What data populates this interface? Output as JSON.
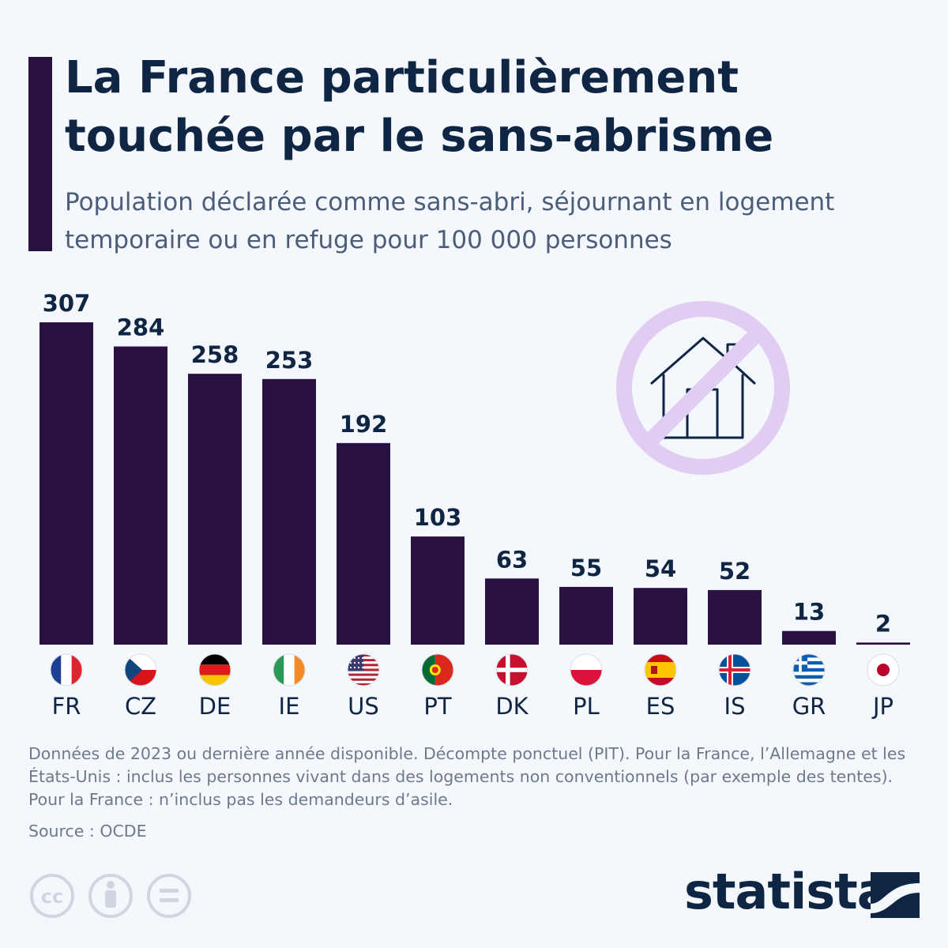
{
  "header": {
    "title": "La France particulièrement touchée par le sans-abrisme",
    "subtitle": "Population déclarée comme sans-abri, séjournant en logement temporaire ou en refuge pour 100 000 personnes"
  },
  "chart_data": {
    "type": "bar",
    "categories": [
      "FR",
      "CZ",
      "DE",
      "IE",
      "US",
      "PT",
      "DK",
      "PL",
      "ES",
      "IS",
      "GR",
      "JP"
    ],
    "values": [
      307,
      284,
      258,
      253,
      192,
      103,
      63,
      55,
      54,
      52,
      13,
      2
    ],
    "title": "La France particulièrement touchée par le sans-abrisme",
    "subtitle": "Population déclarée comme sans-abri, séjournant en logement temporaire ou en refuge pour 100 000 personnes",
    "xlabel": "",
    "ylabel": "",
    "ylim": [
      0,
      307
    ],
    "grid": false,
    "legend": "none"
  },
  "footer": {
    "notes": "Données de 2023 ou dernière année disponible. Décompte ponctuel (PIT). Pour la France, l’Allemagne et les États-Unis : inclus les personnes vivant dans des logements non conventionnels (par exemple des tentes). Pour la France : n’inclus pas les demandeurs d’asile.",
    "source": "Source : OCDE",
    "brand": "statista"
  },
  "icons": {
    "flags": [
      "flag-fr-icon",
      "flag-cz-icon",
      "flag-de-icon",
      "flag-ie-icon",
      "flag-us-icon",
      "flag-pt-icon",
      "flag-dk-icon",
      "flag-pl-icon",
      "flag-es-icon",
      "flag-is-icon",
      "flag-gr-icon",
      "flag-jp-icon"
    ],
    "illustration": "no-house-icon",
    "license": [
      "cc-icon",
      "attribution-icon",
      "no-derivatives-icon"
    ]
  },
  "colors": {
    "bar": "#2a1143",
    "title": "#0f2544",
    "subtitle": "#4b5d78",
    "prohibition": "#e1cdf2",
    "background": "#f4f7fb"
  }
}
